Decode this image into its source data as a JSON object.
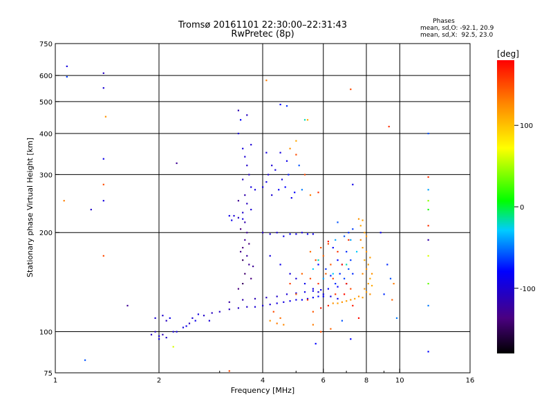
{
  "chart_data": {
    "type": "scatter",
    "title": "Tromsø 20161101 22:30:00–22:31:43",
    "subtitle": "RwPretec (8p)",
    "xlabel": "Frequency [MHz]",
    "ylabel": "Stationary phase Virtual Height [km]",
    "x_scale": "log",
    "y_scale": "log",
    "xlim": [
      1,
      16
    ],
    "ylim": [
      75,
      750
    ],
    "x_ticks": [
      1,
      2,
      4,
      6,
      8,
      10,
      16
    ],
    "y_ticks": [
      75,
      100,
      200,
      300,
      400,
      500,
      600,
      750
    ],
    "grid": true,
    "stats": {
      "heading": "Phases",
      "line_o": "mean, sd,O: -92.1, 20.9",
      "line_x": "mean, sd,X:  92.5, 23.0"
    },
    "colorbar": {
      "label": "[deg]",
      "range": [
        -180,
        180
      ],
      "ticks": [
        -100,
        0,
        100
      ]
    },
    "points": [
      [
        1.08,
        640,
        -95
      ],
      [
        1.08,
        595,
        -65
      ],
      [
        1.38,
        610,
        -110
      ],
      [
        1.38,
        550,
        -100
      ],
      [
        1.38,
        335,
        -90
      ],
      [
        1.38,
        280,
        150
      ],
      [
        1.38,
        250,
        -95
      ],
      [
        1.38,
        170,
        150
      ],
      [
        1.4,
        450,
        120
      ],
      [
        1.06,
        250,
        130
      ],
      [
        1.27,
        235,
        -105
      ],
      [
        1.62,
        120,
        -130
      ],
      [
        1.22,
        82,
        -60
      ],
      [
        2.25,
        325,
        -130
      ],
      [
        3.4,
        470,
        -115
      ],
      [
        3.45,
        440,
        -80
      ],
      [
        3.6,
        455,
        -110
      ],
      [
        3.4,
        400,
        -100
      ],
      [
        3.7,
        370,
        -100
      ],
      [
        3.5,
        360,
        -95
      ],
      [
        3.55,
        340,
        -100
      ],
      [
        3.6,
        320,
        -105
      ],
      [
        3.65,
        300,
        -110
      ],
      [
        3.5,
        290,
        -110
      ],
      [
        3.7,
        275,
        -95
      ],
      [
        3.8,
        270,
        -95
      ],
      [
        3.55,
        260,
        -120
      ],
      [
        3.4,
        250,
        -130
      ],
      [
        3.6,
        245,
        -110
      ],
      [
        3.7,
        235,
        -100
      ],
      [
        3.5,
        230,
        -105
      ],
      [
        3.55,
        215,
        -120
      ],
      [
        3.45,
        205,
        -140
      ],
      [
        3.6,
        200,
        -130
      ],
      [
        3.55,
        190,
        -130
      ],
      [
        3.5,
        180,
        -140
      ],
      [
        3.6,
        170,
        -125
      ],
      [
        3.65,
        160,
        -130
      ],
      [
        3.55,
        150,
        -145
      ],
      [
        3.7,
        145,
        -140
      ],
      [
        3.5,
        140,
        -150
      ],
      [
        3.4,
        135,
        -140
      ],
      [
        3.75,
        158,
        -130
      ],
      [
        3.45,
        175,
        -135
      ],
      [
        3.65,
        185,
        -140
      ],
      [
        3.5,
        165,
        -150
      ],
      [
        4.0,
        275,
        -95
      ],
      [
        4.1,
        285,
        -90
      ],
      [
        4.25,
        260,
        -100
      ],
      [
        4.15,
        300,
        -100
      ],
      [
        4.35,
        310,
        -95
      ],
      [
        4.45,
        270,
        -85
      ],
      [
        4.55,
        290,
        -95
      ],
      [
        4.65,
        275,
        -80
      ],
      [
        4.75,
        300,
        -75
      ],
      [
        4.85,
        255,
        -90
      ],
      [
        4.95,
        265,
        -80
      ],
      [
        4.1,
        350,
        -95
      ],
      [
        4.25,
        320,
        -100
      ],
      [
        4.5,
        350,
        -95
      ],
      [
        4.7,
        330,
        -90
      ],
      [
        4.5,
        490,
        -80
      ],
      [
        4.7,
        485,
        -70
      ],
      [
        5.3,
        440,
        -20
      ],
      [
        5.4,
        440,
        110
      ],
      [
        4.1,
        580,
        130
      ],
      [
        4.8,
        360,
        120
      ],
      [
        5.0,
        380,
        110
      ],
      [
        5.3,
        300,
        150
      ],
      [
        5.1,
        320,
        -60
      ],
      [
        5.0,
        345,
        150
      ],
      [
        5.2,
        270,
        -50
      ],
      [
        5.5,
        260,
        130
      ],
      [
        5.8,
        265,
        160
      ],
      [
        3.2,
        225,
        -90
      ],
      [
        3.3,
        225,
        -100
      ],
      [
        3.4,
        222,
        -110
      ],
      [
        3.5,
        220,
        -95
      ],
      [
        3.25,
        218,
        -90
      ],
      [
        4.0,
        200,
        -110
      ],
      [
        4.2,
        198,
        -100
      ],
      [
        4.4,
        200,
        -100
      ],
      [
        4.6,
        195,
        -90
      ],
      [
        4.8,
        198,
        -80
      ],
      [
        5.0,
        198,
        -90
      ],
      [
        5.2,
        200,
        -95
      ],
      [
        5.4,
        198,
        -85
      ],
      [
        5.6,
        198,
        -90
      ],
      [
        4.2,
        170,
        -95
      ],
      [
        4.5,
        160,
        -90
      ],
      [
        4.8,
        150,
        -95
      ],
      [
        5.0,
        145,
        -100
      ],
      [
        5.3,
        140,
        -90
      ],
      [
        5.6,
        135,
        -95
      ],
      [
        5.8,
        132,
        -100
      ],
      [
        6.0,
        130,
        -90
      ],
      [
        6.3,
        128,
        -95
      ],
      [
        6.6,
        126,
        -90
      ],
      [
        3.0,
        115,
        -110
      ],
      [
        3.2,
        117,
        -110
      ],
      [
        3.4,
        118,
        -110
      ],
      [
        3.6,
        119,
        -105
      ],
      [
        3.8,
        119,
        -100
      ],
      [
        4.0,
        120,
        -100
      ],
      [
        4.2,
        121,
        -100
      ],
      [
        4.4,
        122,
        -95
      ],
      [
        4.6,
        123,
        -95
      ],
      [
        4.8,
        124,
        -90
      ],
      [
        5.0,
        125,
        -90
      ],
      [
        5.2,
        125,
        -85
      ],
      [
        5.4,
        126,
        -85
      ],
      [
        5.6,
        127,
        -85
      ],
      [
        5.8,
        128,
        -80
      ],
      [
        6.0,
        128,
        -80
      ],
      [
        3.2,
        123,
        -125
      ],
      [
        3.5,
        125,
        -120
      ],
      [
        3.8,
        126,
        -115
      ],
      [
        4.1,
        127,
        -110
      ],
      [
        4.4,
        128,
        -105
      ],
      [
        4.7,
        130,
        -100
      ],
      [
        5.0,
        131,
        -95
      ],
      [
        5.3,
        132,
        -90
      ],
      [
        5.6,
        133,
        -90
      ],
      [
        5.9,
        134,
        -85
      ],
      [
        6.2,
        135,
        -85
      ],
      [
        6.6,
        137,
        -80
      ],
      [
        7.0,
        140,
        -80
      ],
      [
        2.5,
        110,
        -100
      ],
      [
        2.7,
        112,
        -105
      ],
      [
        2.85,
        114,
        -110
      ],
      [
        2.6,
        113,
        -95
      ],
      [
        2.8,
        108,
        -100
      ],
      [
        2.2,
        100,
        -100
      ],
      [
        2.35,
        103,
        -95
      ],
      [
        2.45,
        106,
        -110
      ],
      [
        2.05,
        112,
        -105
      ],
      [
        2.15,
        110,
        -90
      ],
      [
        1.95,
        110,
        -100
      ],
      [
        2.1,
        108,
        -110
      ],
      [
        1.9,
        98,
        -110
      ],
      [
        2.0,
        97,
        -100
      ],
      [
        2.05,
        98,
        -115
      ],
      [
        2.1,
        96,
        -105
      ],
      [
        1.95,
        100,
        -110
      ],
      [
        2.0,
        95,
        -95
      ],
      [
        2.25,
        100,
        -95
      ],
      [
        2.4,
        104,
        -90
      ],
      [
        2.55,
        108,
        -90
      ],
      [
        6.5,
        140,
        -70
      ],
      [
        6.7,
        150,
        -70
      ],
      [
        6.9,
        145,
        -65
      ],
      [
        7.1,
        155,
        -60
      ],
      [
        7.3,
        150,
        -70
      ],
      [
        6.6,
        165,
        -80
      ],
      [
        6.8,
        160,
        -75
      ],
      [
        7.0,
        175,
        -70
      ],
      [
        7.2,
        165,
        -65
      ],
      [
        6.4,
        180,
        -80
      ],
      [
        6.9,
        195,
        -60
      ],
      [
        7.1,
        200,
        -70
      ],
      [
        6.6,
        215,
        -60
      ],
      [
        7.3,
        205,
        -65
      ],
      [
        5.8,
        160,
        -80
      ],
      [
        6.1,
        155,
        -70
      ],
      [
        6.3,
        148,
        -75
      ],
      [
        7.6,
        220,
        120
      ],
      [
        7.8,
        218,
        115
      ],
      [
        7.7,
        210,
        110
      ],
      [
        7.9,
        200,
        115
      ],
      [
        8.0,
        195,
        120
      ],
      [
        7.7,
        190,
        125
      ],
      [
        7.8,
        180,
        115
      ],
      [
        8.0,
        175,
        120
      ],
      [
        7.9,
        165,
        110
      ],
      [
        8.1,
        160,
        115
      ],
      [
        8.0,
        155,
        120
      ],
      [
        7.8,
        150,
        125
      ],
      [
        8.2,
        145,
        110
      ],
      [
        8.1,
        140,
        115
      ],
      [
        7.9,
        135,
        120
      ],
      [
        8.0,
        132,
        115
      ],
      [
        8.2,
        130,
        120
      ],
      [
        7.6,
        128,
        120
      ],
      [
        7.8,
        127,
        115
      ],
      [
        7.4,
        126,
        110
      ],
      [
        7.2,
        125,
        120
      ],
      [
        7.0,
        124,
        115
      ],
      [
        6.8,
        123,
        120
      ],
      [
        6.6,
        122,
        115
      ],
      [
        6.4,
        122,
        120
      ],
      [
        8.3,
        138,
        110
      ],
      [
        8.3,
        150,
        120
      ],
      [
        8.2,
        168,
        115
      ],
      [
        5.2,
        150,
        140
      ],
      [
        5.5,
        145,
        150
      ],
      [
        5.8,
        140,
        160
      ],
      [
        6.1,
        150,
        140
      ],
      [
        6.4,
        145,
        150
      ],
      [
        6.3,
        160,
        145
      ],
      [
        6.0,
        170,
        140
      ],
      [
        5.7,
        165,
        150
      ],
      [
        5.5,
        175,
        135
      ],
      [
        5.9,
        180,
        145
      ],
      [
        6.2,
        185,
        150
      ],
      [
        6.6,
        175,
        160
      ],
      [
        6.8,
        160,
        170
      ],
      [
        7.0,
        140,
        165
      ],
      [
        7.2,
        135,
        150
      ],
      [
        6.5,
        130,
        160
      ],
      [
        6.2,
        120,
        165
      ],
      [
        5.9,
        118,
        170
      ],
      [
        5.6,
        115,
        145
      ],
      [
        6.9,
        130,
        175
      ],
      [
        7.3,
        120,
        170
      ],
      [
        7.6,
        110,
        175
      ],
      [
        6.2,
        188,
        170
      ],
      [
        5.0,
        130,
        140
      ],
      [
        4.8,
        140,
        155
      ],
      [
        5.4,
        125,
        160
      ],
      [
        4.2,
        108,
        120
      ],
      [
        4.4,
        106,
        130
      ],
      [
        4.6,
        105,
        125
      ],
      [
        4.5,
        110,
        135
      ],
      [
        5.6,
        105,
        130
      ],
      [
        5.9,
        100,
        125
      ],
      [
        5.7,
        92,
        -80
      ],
      [
        6.3,
        102,
        140
      ],
      [
        4.3,
        115,
        150
      ],
      [
        6.8,
        108,
        -60
      ],
      [
        5.6,
        155,
        -30
      ],
      [
        5.8,
        165,
        -20
      ],
      [
        6.0,
        145,
        -40
      ],
      [
        6.5,
        190,
        -40
      ],
      [
        7.2,
        190,
        -40
      ],
      [
        7.5,
        175,
        -30
      ],
      [
        7.0,
        160,
        -20
      ],
      [
        6.4,
        150,
        -30
      ],
      [
        7.2,
        545,
        150
      ],
      [
        7.3,
        280,
        -90
      ],
      [
        7.1,
        190,
        160
      ],
      [
        9.2,
        160,
        -70
      ],
      [
        9.6,
        140,
        130
      ],
      [
        9.4,
        145,
        -60
      ],
      [
        9.5,
        125,
        140
      ],
      [
        9.3,
        420,
        160
      ],
      [
        8.8,
        200,
        -90
      ],
      [
        9.0,
        130,
        -70
      ],
      [
        9.8,
        110,
        -50
      ],
      [
        7.2,
        95,
        -80
      ],
      [
        5.9,
        100,
        150
      ],
      [
        12.1,
        400,
        -60
      ],
      [
        12.1,
        295,
        160
      ],
      [
        12.1,
        270,
        -40
      ],
      [
        12.1,
        250,
        40
      ],
      [
        12.1,
        235,
        10
      ],
      [
        12.1,
        210,
        160
      ],
      [
        12.1,
        190,
        -120
      ],
      [
        12.1,
        170,
        60
      ],
      [
        12.1,
        140,
        30
      ],
      [
        12.1,
        120,
        -50
      ],
      [
        12.1,
        87,
        -80
      ],
      [
        2.2,
        90,
        60
      ],
      [
        3.2,
        76,
        150
      ]
    ]
  }
}
